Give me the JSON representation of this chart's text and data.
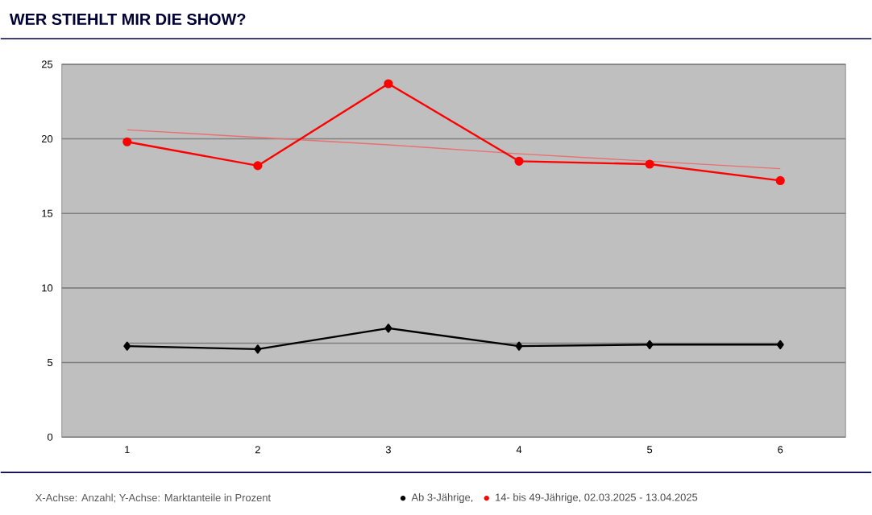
{
  "chart_data": {
    "type": "line",
    "title": "WER STIEHLT MIR DIE SHOW?",
    "categories": [
      "1",
      "2",
      "3",
      "4",
      "5",
      "6"
    ],
    "series": [
      {
        "name": "Ab 3-Jährige,",
        "color": "#000000",
        "marker": "diamond",
        "values": [
          6.1,
          5.9,
          7.3,
          6.1,
          6.2,
          6.2
        ]
      },
      {
        "name": "14- bis 49-Jährige, 02.03.2025 - 13.04.2025",
        "color": "#ff0000",
        "marker": "circle",
        "values": [
          19.8,
          18.2,
          23.7,
          18.5,
          18.3,
          17.2
        ]
      },
      {
        "color": "#808080",
        "marker": "none",
        "values": [
          6.3,
          6.3,
          6.3,
          6.3,
          6.3,
          6.3
        ]
      },
      {
        "color": "#e87070",
        "marker": "none",
        "values": [
          20.6,
          20.1,
          19.6,
          19.0,
          18.5,
          18.0
        ]
      }
    ],
    "ylim": [
      0,
      25
    ],
    "yticks": [
      0,
      5,
      10,
      15,
      20,
      25
    ],
    "grid": "y",
    "legend": "bottom",
    "annotations": [
      "X-Achse: Anzahl; Y-Achse: Marktanteile in Prozent"
    ]
  }
}
